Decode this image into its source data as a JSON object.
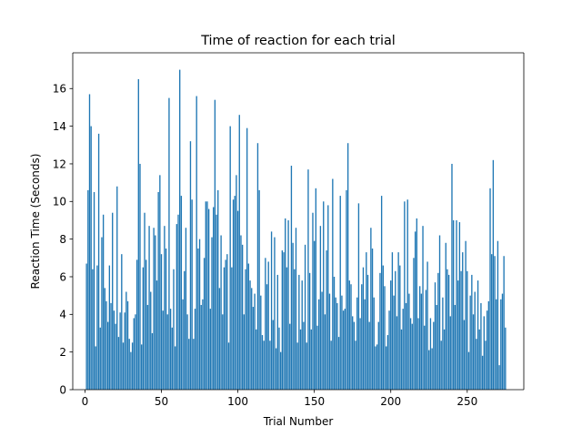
{
  "chart_data": {
    "type": "bar",
    "title": "Time of reaction for each trial",
    "xlabel": "Trial Number",
    "ylabel": "Reaction Time (Seconds)",
    "xlim": [
      -8,
      287
    ],
    "ylim": [
      0,
      17.9
    ],
    "xticks": [
      0,
      50,
      100,
      150,
      200,
      250
    ],
    "yticks": [
      0,
      2,
      4,
      6,
      8,
      10,
      12,
      14,
      16
    ],
    "grid": false,
    "legend": "none",
    "bar_color": "#1f77b4",
    "bar_width": 0.8,
    "x_start": 1,
    "values": [
      6.7,
      10.6,
      15.7,
      14.0,
      6.4,
      10.5,
      2.3,
      6.6,
      13.6,
      3.3,
      8.1,
      9.3,
      5.4,
      4.7,
      3.6,
      6.6,
      4.6,
      9.4,
      4.2,
      3.5,
      10.8,
      2.8,
      4.1,
      7.2,
      2.5,
      4.1,
      5.2,
      4.7,
      2.7,
      2.0,
      2.5,
      3.8,
      4.0,
      6.9,
      16.5,
      12.0,
      2.4,
      6.5,
      9.4,
      6.9,
      4.5,
      8.7,
      5.2,
      3.0,
      8.6,
      8.2,
      5.8,
      10.5,
      11.4,
      7.2,
      4.2,
      8.7,
      7.5,
      4.0,
      15.5,
      4.3,
      3.3,
      6.4,
      2.3,
      8.8,
      9.3,
      17.0,
      10.3,
      4.8,
      6.3,
      8.6,
      4.0,
      2.7,
      13.2,
      10.1,
      2.7,
      4.3,
      15.6,
      7.5,
      8.0,
      4.5,
      4.8,
      7.0,
      10.0,
      10.0,
      9.6,
      4.3,
      8.1,
      9.7,
      15.4,
      9.3,
      10.6,
      5.4,
      8.2,
      4.0,
      6.5,
      6.9,
      7.2,
      2.5,
      14.0,
      6.5,
      10.1,
      10.3,
      11.4,
      9.5,
      14.6,
      8.2,
      7.7,
      4.0,
      6.4,
      13.9,
      6.7,
      5.8,
      5.4,
      4.4,
      5.1,
      3.2,
      13.1,
      10.6,
      5.0,
      2.9,
      2.6,
      7.0,
      5.6,
      6.8,
      2.6,
      8.4,
      3.7,
      8.1,
      2.2,
      6.1,
      3.3,
      2.0,
      7.4,
      7.3,
      9.1,
      6.5,
      9.0,
      3.5,
      11.9,
      7.8,
      6.4,
      8.6,
      2.5,
      6.1,
      3.2,
      5.8,
      3.6,
      7.7,
      2.5,
      11.7,
      6.2,
      3.2,
      9.4,
      7.9,
      10.7,
      3.4,
      4.8,
      8.7,
      5.2,
      10.0,
      4.0,
      7.4,
      9.8,
      5.1,
      2.6,
      11.2,
      6.0,
      4.9,
      4.6,
      2.8,
      10.3,
      5.0,
      4.2,
      4.3,
      10.6,
      13.1,
      5.8,
      5.6,
      3.9,
      3.6,
      2.6,
      4.9,
      9.9,
      3.8,
      5.6,
      6.5,
      4.8,
      7.3,
      6.1,
      3.6,
      8.6,
      7.5,
      4.9,
      2.3,
      2.4,
      3.6,
      6.2,
      10.3,
      6.6,
      5.5,
      2.3,
      2.9,
      4.2,
      5.8,
      7.3,
      5.0,
      6.3,
      3.9,
      7.3,
      6.6,
      3.2,
      4.3,
      10.0,
      4.6,
      10.1,
      5.1,
      3.8,
      3.5,
      7.0,
      8.4,
      9.1,
      3.8,
      5.5,
      5.1,
      8.7,
      3.4,
      5.3,
      6.8,
      2.1,
      3.8,
      2.2,
      3.6,
      5.7,
      4.5,
      6.2,
      8.2,
      2.6,
      4.9,
      3.2,
      7.8,
      6.4,
      6.1,
      3.9,
      12.0,
      9.0,
      4.5,
      9.0,
      5.8,
      8.9,
      6.3,
      7.3,
      3.7,
      7.9,
      6.3,
      2.0,
      5.0,
      6.1,
      4.0,
      5.2,
      2.7,
      5.8,
      3.2,
      4.6,
      1.8,
      3.9,
      2.6,
      4.2,
      4.7,
      10.7,
      7.2,
      12.2,
      7.1,
      4.8,
      7.9,
      1.3,
      4.8,
      5.1,
      7.1,
      3.3
    ]
  }
}
